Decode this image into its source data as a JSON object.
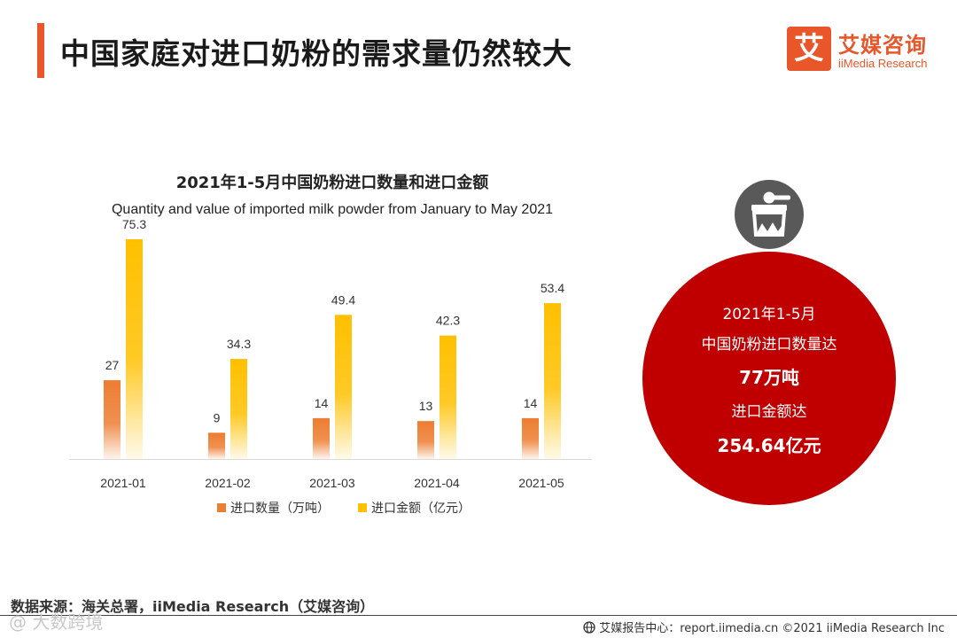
{
  "page": {
    "title": "中国家庭对进口奶粉的需求量仍然较大"
  },
  "logo": {
    "mark": "艾",
    "name_cn": "艾媒咨询",
    "name_en": "iiMedia Research"
  },
  "chart_data": {
    "type": "bar",
    "title": "2021年1-5月中国奶粉进口数量和进口金额",
    "subtitle": "Quantity and value of imported milk powder from January to May 2021",
    "categories": [
      "2021-01",
      "2021-02",
      "2021-03",
      "2021-04",
      "2021-05"
    ],
    "series": [
      {
        "name": "进口数量（万吨）",
        "values": [
          27,
          9,
          14,
          13,
          14
        ],
        "color": "#ed7d31"
      },
      {
        "name": "进口金额（亿元）",
        "values": [
          75.3,
          34.3,
          49.4,
          42.3,
          53.4
        ],
        "color": "#ffc000"
      }
    ],
    "ylim": [
      0,
      75.3
    ],
    "grid": false,
    "legend_position": "bottom"
  },
  "summary": {
    "line1": "2021年1-5月",
    "line2": "中国奶粉进口数量达",
    "line3": "77万吨",
    "line4": "进口金额达",
    "line5": "254.64亿元"
  },
  "colors": {
    "accent": "#e8562a",
    "circle_red": "#c00000",
    "icon_gray": "#595959"
  },
  "source": "数据来源：海关总署，iiMedia Research（艾媒咨询）",
  "footer": "艾媒报告中心：report.iimedia.cn  ©2021  iiMedia Research  Inc",
  "watermark": "@ 大数跨境"
}
